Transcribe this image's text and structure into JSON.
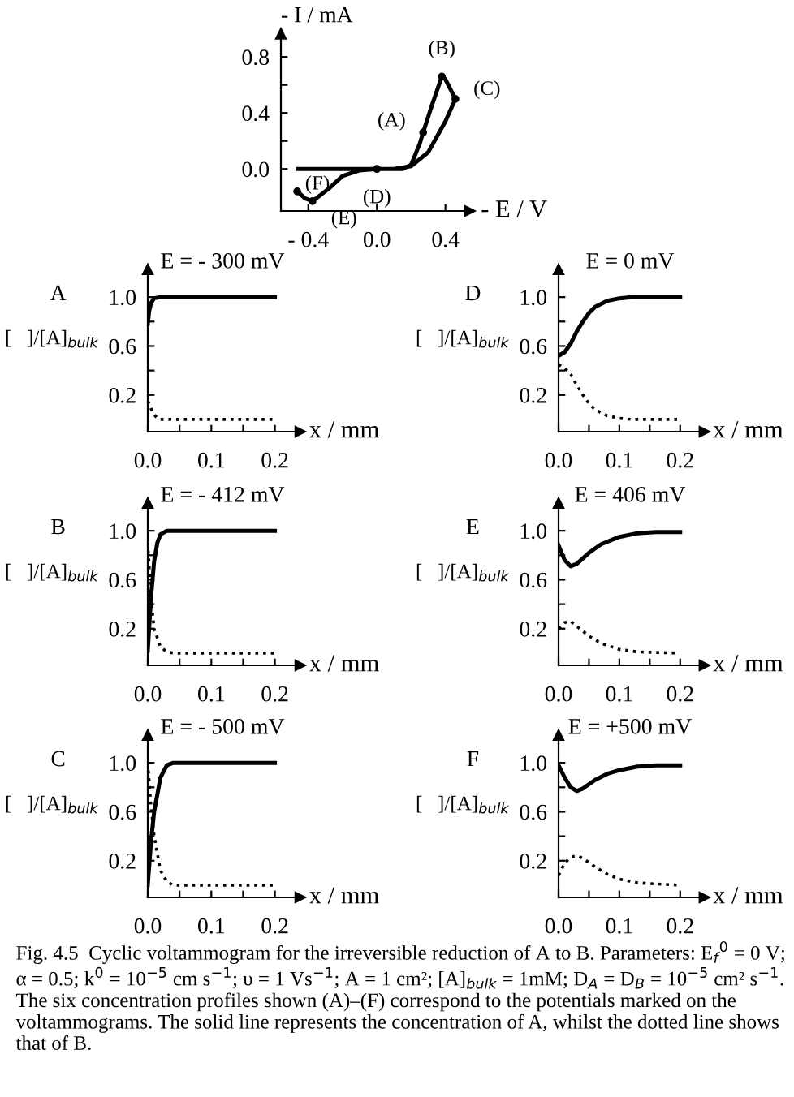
{
  "chart_data": [
    {
      "type": "line",
      "xlabel": "- E / V",
      "ylabel": "- I / mA",
      "xlim": [
        -0.56,
        0.52
      ],
      "ylim": [
        -0.3,
        0.94
      ],
      "xticks": [
        {
          "value": -0.4,
          "label": "- 0.4"
        },
        {
          "value": 0.0,
          "label": "0.0"
        },
        {
          "value": 0.4,
          "label": "0.4"
        }
      ],
      "yticks": [
        {
          "value": 0.0,
          "label": "0.0"
        },
        {
          "value": 0.2,
          "label": null
        },
        {
          "value": 0.4,
          "label": "0.4"
        },
        {
          "value": 0.6,
          "label": null
        },
        {
          "value": 0.8,
          "label": "0.8"
        }
      ],
      "series": [
        {
          "color": "#000000",
          "line_style": "solid",
          "x": [
            -0.46,
            -0.2,
            0.0,
            0.15,
            0.2,
            0.25,
            0.27,
            0.32,
            0.379,
            0.4,
            0.458,
            0.4,
            0.3,
            0.2,
            0.1,
            0.0,
            -0.1,
            -0.2,
            -0.28,
            -0.376,
            -0.42,
            -0.465
          ],
          "values": [
            0.0,
            0.0,
            0.0,
            0.0,
            0.03,
            0.18,
            0.26,
            0.45,
            0.66,
            0.64,
            0.5,
            0.34,
            0.12,
            0.02,
            0.0,
            0.0,
            -0.01,
            -0.05,
            -0.14,
            -0.23,
            -0.21,
            -0.16
          ]
        }
      ],
      "annotations": [
        {
          "text": "(A)",
          "x": 0.27,
          "y": 0.26
        },
        {
          "text": "(B)",
          "x": 0.379,
          "y": 0.66
        },
        {
          "text": "(C)",
          "x": 0.458,
          "y": 0.5
        },
        {
          "text": "(D)",
          "x": 0.0,
          "y": 0.0
        },
        {
          "text": "(E)",
          "x": -0.376,
          "y": -0.23
        },
        {
          "text": "(F)",
          "x": -0.465,
          "y": -0.16
        },
        "Fig. 4.5  Cyclic voltammogram for the irreversible reduction of A to B. Parameters: E$_{f}$$^{0}$ = 0 V; α = 0.5; k$^{0}$ = 10$^{−5}$ cm s$^{−1}$; υ = 1 Vs$^{−1}$; A = 1 cm²; [A]$_{bulk}$ = 1mM; D$_{A}$ = D$_{B}$ = 10$^{−5}$ cm² s$^{−1}$. The six concentration profiles shown (A)–(F) correspond to the potentials marked on the voltammograms. The solid line represents the concentration of A, whilst the dotted line shows that of B."
      ]
    },
    {
      "type": "line",
      "title": "E = - 300 mV",
      "xlabel": "x / mm",
      "ylabel": "[   ]/[A]$_{bulk}$",
      "annotations": [
        "A"
      ],
      "xlim": [
        0,
        0.235
      ],
      "ylim": [
        -0.1,
        1.2
      ],
      "xticks": [
        {
          "value": 0.0,
          "label": "0.0"
        },
        {
          "value": 0.05,
          "label": null
        },
        {
          "value": 0.1,
          "label": "0.1"
        },
        {
          "value": 0.15,
          "label": null
        },
        {
          "value": 0.2,
          "label": "0.2"
        }
      ],
      "yticks": [
        {
          "value": 0.2,
          "label": "0.2"
        },
        {
          "value": 0.4,
          "label": null
        },
        {
          "value": 0.6,
          "label": "0.6"
        },
        {
          "value": 0.8,
          "label": null
        },
        {
          "value": 1.0,
          "label": "1.0"
        }
      ],
      "series": [
        {
          "color": "#000000",
          "line_style": "solid",
          "x": [
            0,
            0.002,
            0.005,
            0.01,
            0.02,
            0.05,
            0.1,
            0.15,
            0.2
          ],
          "values": [
            0.78,
            0.88,
            0.95,
            0.99,
            1.0,
            1.0,
            1.0,
            1.0,
            1.0
          ]
        },
        {
          "color": "#000000",
          "line_style": "dotted",
          "x": [
            0,
            0.005,
            0.01,
            0.015,
            0.02,
            0.05,
            0.1,
            0.15,
            0.2
          ],
          "values": [
            0.15,
            0.09,
            0.04,
            0.01,
            0.0,
            0.0,
            0.0,
            0.0,
            0.0
          ]
        }
      ]
    },
    {
      "type": "line",
      "title": "E = - 412 mV",
      "xlabel": "x / mm",
      "ylabel": "[   ]/[A]$_{bulk}$",
      "annotations": [
        "B"
      ],
      "xlim": [
        0,
        0.235
      ],
      "ylim": [
        -0.1,
        1.2
      ],
      "xticks": [
        {
          "value": 0.0,
          "label": "0.0"
        },
        {
          "value": 0.05,
          "label": null
        },
        {
          "value": 0.1,
          "label": "0.1"
        },
        {
          "value": 0.15,
          "label": null
        },
        {
          "value": 0.2,
          "label": "0.2"
        }
      ],
      "yticks": [
        {
          "value": 0.2,
          "label": "0.2"
        },
        {
          "value": 0.4,
          "label": null
        },
        {
          "value": 0.6,
          "label": "0.6"
        },
        {
          "value": 0.8,
          "label": null
        },
        {
          "value": 1.0,
          "label": "1.0"
        }
      ],
      "series": [
        {
          "color": "#000000",
          "line_style": "solid",
          "x": [
            0,
            0.005,
            0.01,
            0.015,
            0.02,
            0.03,
            0.05,
            0.1,
            0.15,
            0.2
          ],
          "values": [
            0.02,
            0.45,
            0.75,
            0.9,
            0.97,
            1.0,
            1.0,
            1.0,
            1.0,
            1.0
          ]
        },
        {
          "color": "#000000",
          "line_style": "dotted",
          "x": [
            0,
            0.005,
            0.01,
            0.02,
            0.03,
            0.04,
            0.1,
            0.15,
            0.2
          ],
          "values": [
            0.9,
            0.45,
            0.2,
            0.05,
            0.01,
            0.0,
            0.0,
            0.0,
            0.0
          ]
        }
      ]
    },
    {
      "type": "line",
      "title": "E = - 500 mV",
      "xlabel": "x / mm",
      "ylabel": "[   ]/[A]$_{bulk}$",
      "annotations": [
        "C"
      ],
      "xlim": [
        0,
        0.235
      ],
      "ylim": [
        -0.1,
        1.2
      ],
      "xticks": [
        {
          "value": 0.0,
          "label": "0.0"
        },
        {
          "value": 0.05,
          "label": null
        },
        {
          "value": 0.1,
          "label": "0.1"
        },
        {
          "value": 0.15,
          "label": null
        },
        {
          "value": 0.2,
          "label": "0.2"
        }
      ],
      "yticks": [
        {
          "value": 0.2,
          "label": "0.2"
        },
        {
          "value": 0.4,
          "label": null
        },
        {
          "value": 0.6,
          "label": "0.6"
        },
        {
          "value": 0.8,
          "label": null
        },
        {
          "value": 1.0,
          "label": "1.0"
        }
      ],
      "series": [
        {
          "color": "#000000",
          "line_style": "solid",
          "x": [
            0,
            0.005,
            0.01,
            0.02,
            0.03,
            0.04,
            0.1,
            0.15,
            0.2
          ],
          "values": [
            0.0,
            0.35,
            0.6,
            0.88,
            0.98,
            1.0,
            1.0,
            1.0,
            1.0
          ]
        },
        {
          "color": "#000000",
          "line_style": "dotted",
          "x": [
            0,
            0.005,
            0.01,
            0.02,
            0.03,
            0.04,
            0.1,
            0.15,
            0.2
          ],
          "values": [
            1.0,
            0.65,
            0.4,
            0.12,
            0.03,
            0.0,
            0.0,
            0.0,
            0.0
          ]
        }
      ]
    },
    {
      "type": "line",
      "title": "E = 0 mV",
      "xlabel": "x / mm",
      "ylabel": "[   ]/[A]$_{bulk}$",
      "annotations": [
        "D"
      ],
      "xlim": [
        0,
        0.235
      ],
      "ylim": [
        -0.1,
        1.2
      ],
      "xticks": [
        {
          "value": 0.0,
          "label": "0.0"
        },
        {
          "value": 0.05,
          "label": null
        },
        {
          "value": 0.1,
          "label": "0.1"
        },
        {
          "value": 0.15,
          "label": null
        },
        {
          "value": 0.2,
          "label": "0.2"
        }
      ],
      "yticks": [
        {
          "value": 0.2,
          "label": "0.2"
        },
        {
          "value": 0.4,
          "label": null
        },
        {
          "value": 0.6,
          "label": "0.6"
        },
        {
          "value": 0.8,
          "label": null
        },
        {
          "value": 1.0,
          "label": "1.0"
        }
      ],
      "series": [
        {
          "color": "#000000",
          "line_style": "solid",
          "x": [
            0,
            0.01,
            0.02,
            0.03,
            0.04,
            0.05,
            0.06,
            0.08,
            0.1,
            0.12,
            0.2
          ],
          "values": [
            0.52,
            0.55,
            0.62,
            0.72,
            0.8,
            0.87,
            0.92,
            0.97,
            0.99,
            1.0,
            1.0
          ]
        },
        {
          "color": "#000000",
          "line_style": "dotted",
          "x": [
            0,
            0.01,
            0.02,
            0.03,
            0.04,
            0.05,
            0.06,
            0.08,
            0.1,
            0.12,
            0.2
          ],
          "values": [
            0.45,
            0.42,
            0.37,
            0.28,
            0.2,
            0.13,
            0.08,
            0.03,
            0.01,
            0.0,
            0.0
          ]
        }
      ]
    },
    {
      "type": "line",
      "title": "E = 406 mV",
      "xlabel": "x / mm",
      "ylabel": "[   ]/[A]$_{bulk}$",
      "annotations": [
        "E"
      ],
      "xlim": [
        0,
        0.235
      ],
      "ylim": [
        -0.1,
        1.2
      ],
      "xticks": [
        {
          "value": 0.0,
          "label": "0.0"
        },
        {
          "value": 0.05,
          "label": null
        },
        {
          "value": 0.1,
          "label": "0.1"
        },
        {
          "value": 0.15,
          "label": null
        },
        {
          "value": 0.2,
          "label": "0.2"
        }
      ],
      "yticks": [
        {
          "value": 0.2,
          "label": "0.2"
        },
        {
          "value": 0.4,
          "label": null
        },
        {
          "value": 0.6,
          "label": "0.6"
        },
        {
          "value": 0.8,
          "label": null
        },
        {
          "value": 1.0,
          "label": "1.0"
        }
      ],
      "series": [
        {
          "color": "#000000",
          "line_style": "solid",
          "x": [
            0,
            0.01,
            0.02,
            0.03,
            0.05,
            0.07,
            0.1,
            0.13,
            0.16,
            0.2
          ],
          "values": [
            0.88,
            0.76,
            0.71,
            0.73,
            0.82,
            0.89,
            0.95,
            0.98,
            0.99,
            0.99
          ]
        },
        {
          "color": "#000000",
          "line_style": "dotted",
          "x": [
            0,
            0.01,
            0.02,
            0.03,
            0.05,
            0.07,
            0.1,
            0.13,
            0.2
          ],
          "values": [
            0.2,
            0.25,
            0.26,
            0.22,
            0.14,
            0.08,
            0.03,
            0.01,
            0.0
          ]
        }
      ]
    },
    {
      "type": "line",
      "title": "E = +500 mV",
      "xlabel": "x / mm",
      "ylabel": "[   ]/[A]$_{bulk}$",
      "annotations": [
        "F"
      ],
      "xlim": [
        0,
        0.235
      ],
      "ylim": [
        -0.1,
        1.2
      ],
      "xticks": [
        {
          "value": 0.0,
          "label": "0.0"
        },
        {
          "value": 0.05,
          "label": null
        },
        {
          "value": 0.1,
          "label": "0.1"
        },
        {
          "value": 0.15,
          "label": null
        },
        {
          "value": 0.2,
          "label": "0.2"
        }
      ],
      "yticks": [
        {
          "value": 0.2,
          "label": "0.2"
        },
        {
          "value": 0.4,
          "label": null
        },
        {
          "value": 0.6,
          "label": "0.6"
        },
        {
          "value": 0.8,
          "label": null
        },
        {
          "value": 1.0,
          "label": "1.0"
        }
      ],
      "series": [
        {
          "color": "#000000",
          "line_style": "solid",
          "x": [
            0,
            0.01,
            0.02,
            0.03,
            0.04,
            0.06,
            0.08,
            0.1,
            0.13,
            0.16,
            0.2
          ],
          "values": [
            0.98,
            0.88,
            0.8,
            0.77,
            0.79,
            0.86,
            0.91,
            0.94,
            0.97,
            0.98,
            0.98
          ]
        },
        {
          "color": "#000000",
          "line_style": "dotted",
          "x": [
            0,
            0.01,
            0.02,
            0.03,
            0.04,
            0.06,
            0.08,
            0.1,
            0.13,
            0.16,
            0.2
          ],
          "values": [
            0.08,
            0.18,
            0.23,
            0.24,
            0.22,
            0.15,
            0.09,
            0.05,
            0.02,
            0.01,
            0.0
          ]
        }
      ]
    }
  ]
}
